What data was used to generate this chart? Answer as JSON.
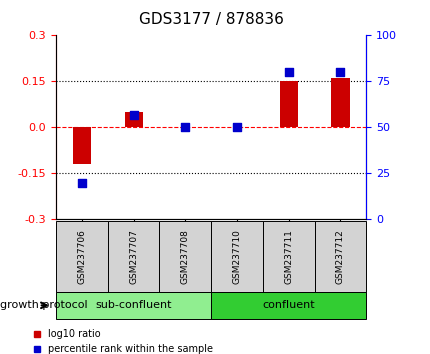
{
  "title": "GDS3177 / 878836",
  "samples": [
    "GSM237706",
    "GSM237707",
    "GSM237708",
    "GSM237710",
    "GSM237711",
    "GSM237712"
  ],
  "log10_ratio": [
    -0.12,
    0.05,
    0.0,
    0.0,
    0.15,
    0.16
  ],
  "percentile_rank": [
    20,
    57,
    50,
    50,
    80,
    80
  ],
  "ylim_left": [
    -0.3,
    0.3
  ],
  "ylim_right": [
    0,
    100
  ],
  "yticks_left": [
    -0.3,
    -0.15,
    0.0,
    0.15,
    0.3
  ],
  "yticks_right": [
    0,
    25,
    50,
    75,
    100
  ],
  "hlines": [
    0.15,
    0.0,
    -0.15
  ],
  "hlines_styles": [
    "dotted",
    "dashed",
    "dotted"
  ],
  "hlines_colors": [
    "black",
    "red",
    "black"
  ],
  "bar_color": "#cc0000",
  "square_color": "#0000cc",
  "group1_label": "sub-confluent",
  "group2_label": "confluent",
  "group1_color": "#90ee90",
  "group2_color": "#32cd32",
  "group_label": "growth protocol",
  "legend_log10": "log10 ratio",
  "legend_pct": "percentile rank within the sample",
  "title_fontsize": 11,
  "axis_tick_fontsize": 8,
  "label_fontsize": 8,
  "bar_width": 0.35,
  "square_size": 40
}
